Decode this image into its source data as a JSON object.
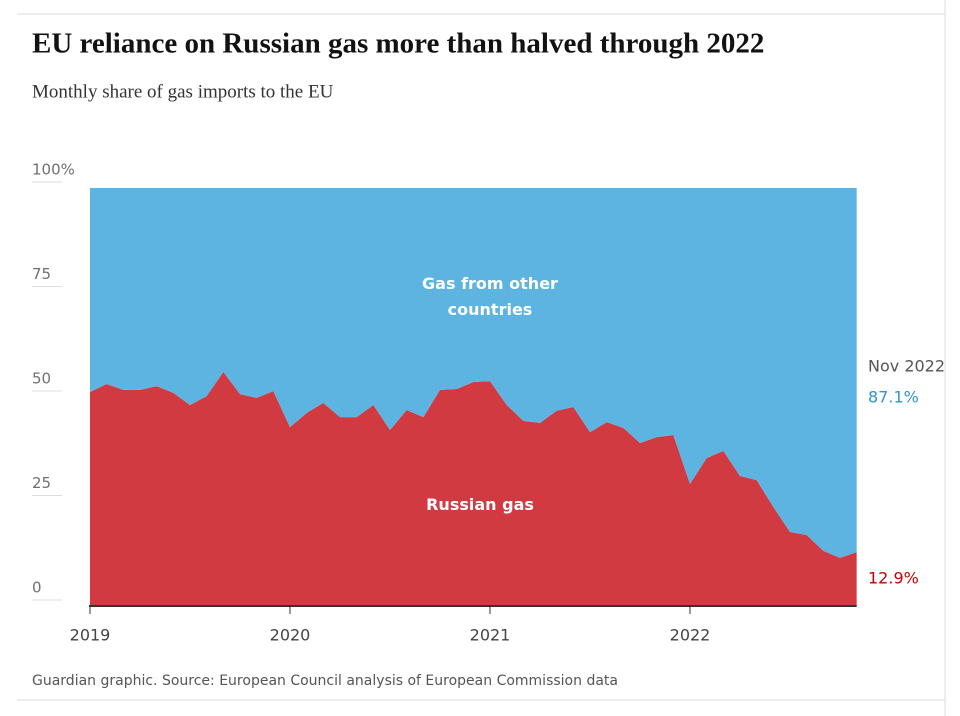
{
  "chart_data": {
    "type": "stacked-area",
    "title": "EU reliance on Russian gas more than halved through 2022",
    "subtitle": "Monthly share of gas imports to the EU",
    "source": "Guardian graphic. Source: European Council analysis of European Commission data",
    "end_label": "Nov 2022",
    "categories": [
      "2019",
      null,
      null,
      null,
      null,
      null,
      null,
      null,
      null,
      null,
      null,
      null,
      "2020",
      null,
      null,
      null,
      null,
      null,
      null,
      null,
      null,
      null,
      null,
      null,
      "2021",
      null,
      null,
      null,
      null,
      null,
      null,
      null,
      null,
      null,
      null,
      null,
      "2022",
      null,
      null,
      null,
      null,
      null,
      null,
      null,
      null,
      null,
      null
    ],
    "series": [
      {
        "name": "Russian gas",
        "color": "#d23a41",
        "values": [
          51.2,
          53.1,
          51.7,
          51.7,
          52.6,
          51.0,
          48.1,
          50.2,
          56.0,
          50.7,
          49.8,
          51.4,
          42.8,
          46.2,
          48.6,
          45.2,
          45.2,
          48.1,
          42.1,
          46.9,
          45.2,
          51.7,
          51.9,
          53.6,
          53.8,
          48.1,
          44.3,
          43.8,
          46.7,
          47.6,
          41.6,
          44.0,
          42.6,
          39.0,
          40.4,
          40.9,
          29.2,
          35.4,
          37.1,
          31.1,
          30.1,
          23.7,
          17.7,
          17.0,
          13.2,
          11.5,
          12.9
        ],
        "value_labels": [
          null,
          null,
          null,
          null,
          null,
          null,
          null,
          null,
          null,
          null,
          null,
          null,
          null,
          null,
          null,
          null,
          null,
          null,
          null,
          null,
          null,
          null,
          null,
          null,
          null,
          null,
          null,
          null,
          null,
          null,
          null,
          null,
          null,
          null,
          null,
          null,
          null,
          null,
          null,
          null,
          null,
          null,
          null,
          null,
          null,
          null,
          "12.9%"
        ]
      },
      {
        "name": "Gas from other countries",
        "color": "#5db4e1",
        "values": [
          48.8,
          46.9,
          48.3,
          48.3,
          47.4,
          49.0,
          51.9,
          49.8,
          44.0,
          49.3,
          50.2,
          48.6,
          57.2,
          53.8,
          51.4,
          54.8,
          54.8,
          51.9,
          57.9,
          53.1,
          54.8,
          48.3,
          48.1,
          46.4,
          46.2,
          51.9,
          55.7,
          56.2,
          53.3,
          52.4,
          58.4,
          56.0,
          57.4,
          61.0,
          59.6,
          59.1,
          70.8,
          64.6,
          62.9,
          68.9,
          69.9,
          76.3,
          82.3,
          83.0,
          86.8,
          88.5,
          87.1
        ],
        "value_labels": [
          null,
          null,
          null,
          null,
          null,
          null,
          null,
          null,
          null,
          null,
          null,
          null,
          null,
          null,
          null,
          null,
          null,
          null,
          null,
          null,
          null,
          null,
          null,
          null,
          null,
          null,
          null,
          null,
          null,
          null,
          null,
          null,
          null,
          null,
          null,
          null,
          null,
          null,
          null,
          null,
          null,
          null,
          null,
          null,
          null,
          null,
          "87.1%"
        ]
      }
    ],
    "ylim": [
      0,
      100
    ],
    "yticks": [
      0,
      25,
      50,
      75,
      {
        "value": 100,
        "label": "100%"
      }
    ]
  }
}
